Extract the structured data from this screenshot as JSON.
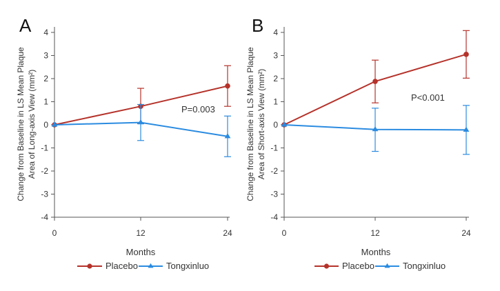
{
  "colors": {
    "placebo": "#b5322a",
    "tongxinluo": "#2a8be0",
    "axis": "#555555"
  },
  "legend": {
    "placebo": "Placebo",
    "tongxinluo": "Tongxinluo"
  },
  "chart_data": [
    {
      "panel": "A",
      "type": "line",
      "xlabel": "Months",
      "ylabel_line1": "Change from Baseline in LS Mean Plaque",
      "ylabel_line2": "Area of Long-axis View (mm²)",
      "x": [
        0,
        12,
        24
      ],
      "ylim": [
        -4,
        4
      ],
      "yticks": [
        4,
        3,
        2,
        1,
        0,
        -1,
        -2,
        -3,
        -4
      ],
      "annotation": "P=0.003",
      "series": [
        {
          "name": "Placebo",
          "marker": "circle",
          "values": [
            0,
            0.8,
            1.68
          ],
          "err_low": [
            0,
            0.05,
            0.8
          ],
          "err_high": [
            0,
            1.58,
            2.56
          ]
        },
        {
          "name": "Tongxinluo",
          "marker": "triangle",
          "values": [
            0,
            0.1,
            -0.5
          ],
          "err_low": [
            0,
            -0.68,
            -1.38
          ],
          "err_high": [
            0,
            0.88,
            0.38
          ]
        }
      ]
    },
    {
      "panel": "B",
      "type": "line",
      "xlabel": "Months",
      "ylabel_line1": "Change from Baseline in LS Mean Plaque",
      "ylabel_line2": "Area of Short-axis View (mm²)",
      "x": [
        0,
        12,
        24
      ],
      "ylim": [
        -4,
        4
      ],
      "yticks": [
        4,
        3,
        2,
        1,
        0,
        -1,
        -2,
        -3,
        -4
      ],
      "annotation": "P<0.001",
      "series": [
        {
          "name": "Placebo",
          "marker": "circle",
          "values": [
            0,
            1.88,
            3.05
          ],
          "err_low": [
            0,
            0.95,
            2.02
          ],
          "err_high": [
            0,
            2.8,
            4.08
          ]
        },
        {
          "name": "Tongxinluo",
          "marker": "triangle",
          "values": [
            0,
            -0.2,
            -0.22
          ],
          "err_low": [
            0,
            -1.15,
            -1.28
          ],
          "err_high": [
            0,
            0.72,
            0.84
          ]
        }
      ]
    }
  ]
}
